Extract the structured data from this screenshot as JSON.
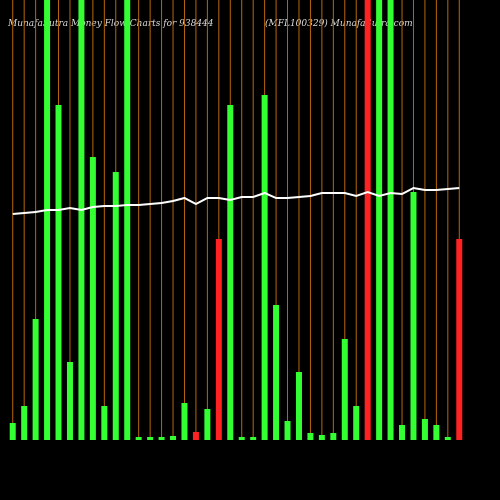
{
  "chart_data": {
    "type": "bar",
    "title": "MunafaSutra  Money Flow  Charts for 938444",
    "subtitle": "(MFL100329) MunafaSutra.com",
    "categories": [
      null,
      null,
      null,
      null,
      null,
      null,
      null,
      null,
      null,
      null,
      null,
      null,
      null,
      null,
      null,
      null,
      null,
      null,
      null,
      null,
      null,
      null,
      null,
      null,
      null,
      null,
      null,
      null,
      null,
      null,
      null,
      null,
      null,
      null,
      null,
      null,
      null,
      null,
      null,
      null
    ],
    "series": [
      {
        "values": [
          17,
          34,
          121,
          440,
          335,
          78,
          440,
          283,
          34,
          268,
          440,
          3,
          3,
          3,
          4,
          37,
          8,
          31,
          201,
          335,
          3,
          3,
          345,
          135,
          19,
          68,
          7,
          5,
          7,
          101,
          34,
          440,
          440,
          440,
          15,
          248,
          21,
          15,
          3,
          201
        ],
        "colors": [
          "#33ff33",
          "#33ff33",
          "#33ff33",
          "#33ff33",
          "#33ff33",
          "#33ff33",
          "#33ff33",
          "#33ff33",
          "#33ff33",
          "#33ff33",
          "#33ff33",
          "#33ff33",
          "#33ff33",
          "#33ff33",
          "#33ff33",
          "#33ff33",
          "#ff2222",
          "#33ff33",
          "#ff2222",
          "#33ff33",
          "#33ff33",
          "#33ff33",
          "#33ff33",
          "#33ff33",
          "#33ff33",
          "#33ff33",
          "#33ff33",
          "#33ff33",
          "#33ff33",
          "#33ff33",
          "#33ff33",
          "#ff2222",
          "#33ff33",
          "#33ff33",
          "#33ff33",
          "#33ff33",
          "#33ff33",
          "#33ff33",
          "#33ff33",
          "#ff2222"
        ]
      },
      {
        "type": "line",
        "color": "#ffffff",
        "values": [
          226,
          227,
          228,
          230,
          230,
          232,
          230,
          233,
          234,
          234,
          235,
          235,
          236,
          237,
          239,
          242,
          236,
          242,
          242,
          240,
          243,
          243,
          247,
          242,
          242,
          243,
          244,
          247,
          247,
          247,
          244,
          248,
          244,
          247,
          246,
          252,
          250,
          250,
          251,
          252
        ]
      }
    ],
    "ylim": [
      0,
      440
    ],
    "gridline_color": "#b8660b"
  }
}
